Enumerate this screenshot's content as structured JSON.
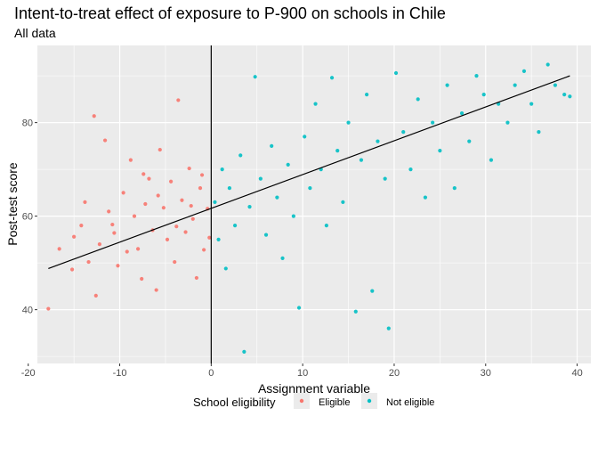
{
  "chart_data": {
    "type": "scatter",
    "title": "Intent-to-treat effect of exposure to P-900 on schools in Chile",
    "subtitle": "All data",
    "xlabel": "Assignment variable",
    "ylabel": "Post-test score",
    "xlim": [
      -19,
      41.5
    ],
    "ylim": [
      28.5,
      96.5
    ],
    "xticks": [
      -20,
      -10,
      0,
      10,
      20,
      30,
      40
    ],
    "yticks": [
      40,
      60,
      80
    ],
    "grid": true,
    "cutoff_x": 0,
    "fit_line": {
      "x": [
        -17.8,
        39.2
      ],
      "y": [
        48.8,
        90
      ]
    },
    "legend": {
      "title": "School eligibility",
      "position": "bottom"
    },
    "series": [
      {
        "name": "Eligible",
        "color": "#F8766D",
        "points": [
          [
            -17.8,
            40.2
          ],
          [
            -16.6,
            53
          ],
          [
            -15.2,
            48.6
          ],
          [
            -15.0,
            55.6
          ],
          [
            -14.2,
            58
          ],
          [
            -13.4,
            50.2
          ],
          [
            -12.8,
            81.4
          ],
          [
            -12.6,
            43
          ],
          [
            -12.2,
            54
          ],
          [
            -11.6,
            76.2
          ],
          [
            -11.2,
            61
          ],
          [
            -10.6,
            56.4
          ],
          [
            -10.2,
            49.4
          ],
          [
            -9.6,
            65
          ],
          [
            -9.2,
            52.4
          ],
          [
            -8.8,
            72
          ],
          [
            -8.4,
            60
          ],
          [
            -8.0,
            53
          ],
          [
            -7.6,
            46.6
          ],
          [
            -7.2,
            62.6
          ],
          [
            -6.8,
            68
          ],
          [
            -6.4,
            57
          ],
          [
            -6.0,
            44.2
          ],
          [
            -5.6,
            74.2
          ],
          [
            -5.2,
            61.8
          ],
          [
            -4.8,
            55
          ],
          [
            -4.4,
            67.4
          ],
          [
            -4.0,
            50.2
          ],
          [
            -3.6,
            84.8
          ],
          [
            -3.2,
            63.4
          ],
          [
            -2.8,
            56.6
          ],
          [
            -2.4,
            70.2
          ],
          [
            -2.0,
            59.4
          ],
          [
            -1.6,
            46.8
          ],
          [
            -1.2,
            66
          ],
          [
            -0.8,
            52.8
          ],
          [
            -0.4,
            61.6
          ],
          [
            -13.8,
            63
          ],
          [
            -10.8,
            58.2
          ],
          [
            -7.4,
            69
          ],
          [
            -5.8,
            64.4
          ],
          [
            -3.8,
            57.8
          ],
          [
            -2.2,
            62.2
          ],
          [
            -1.0,
            68.8
          ],
          [
            -0.2,
            55.4
          ]
        ]
      },
      {
        "name": "Not eligible",
        "color": "#00BFC4",
        "points": [
          [
            0.4,
            63
          ],
          [
            0.8,
            55
          ],
          [
            1.2,
            70
          ],
          [
            1.6,
            48.8
          ],
          [
            2.0,
            66
          ],
          [
            2.6,
            58
          ],
          [
            3.2,
            73
          ],
          [
            3.6,
            31
          ],
          [
            4.2,
            62
          ],
          [
            4.8,
            89.8
          ],
          [
            5.4,
            68
          ],
          [
            6.0,
            56
          ],
          [
            6.6,
            75
          ],
          [
            7.2,
            64
          ],
          [
            7.8,
            51
          ],
          [
            8.4,
            71
          ],
          [
            9.0,
            60
          ],
          [
            9.6,
            40.4
          ],
          [
            10.2,
            77
          ],
          [
            10.8,
            66
          ],
          [
            11.4,
            84
          ],
          [
            12.0,
            70
          ],
          [
            12.6,
            58
          ],
          [
            13.2,
            89.6
          ],
          [
            13.8,
            74
          ],
          [
            14.4,
            63
          ],
          [
            15.0,
            80
          ],
          [
            15.8,
            39.6
          ],
          [
            16.4,
            72
          ],
          [
            17.0,
            86
          ],
          [
            17.6,
            44
          ],
          [
            18.2,
            76
          ],
          [
            19.0,
            68
          ],
          [
            19.4,
            36
          ],
          [
            20.2,
            90.6
          ],
          [
            21.0,
            78
          ],
          [
            21.8,
            70
          ],
          [
            22.6,
            85
          ],
          [
            23.4,
            64
          ],
          [
            24.2,
            80
          ],
          [
            25.0,
            74
          ],
          [
            25.8,
            88
          ],
          [
            26.6,
            66
          ],
          [
            27.4,
            82
          ],
          [
            28.2,
            76
          ],
          [
            29.0,
            90
          ],
          [
            29.8,
            86
          ],
          [
            30.6,
            72
          ],
          [
            31.4,
            84
          ],
          [
            32.4,
            80
          ],
          [
            33.2,
            88
          ],
          [
            34.2,
            91
          ],
          [
            35.0,
            84
          ],
          [
            35.8,
            78
          ],
          [
            36.8,
            92.4
          ],
          [
            37.6,
            88
          ],
          [
            38.6,
            86
          ],
          [
            39.2,
            85.6
          ]
        ]
      }
    ]
  }
}
